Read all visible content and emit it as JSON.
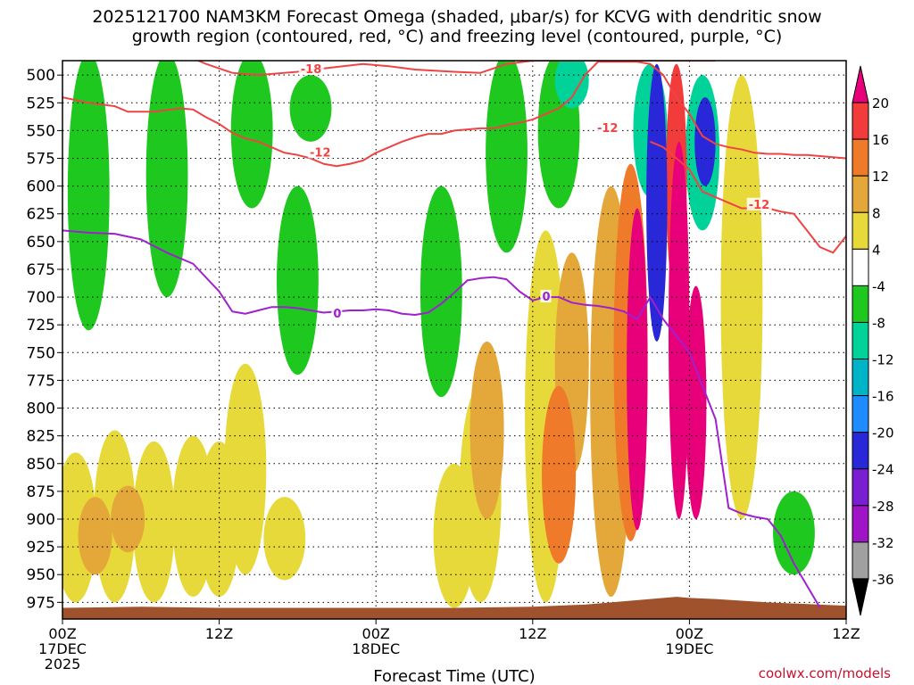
{
  "title_lines": [
    "2025121700 NAM3KM Forecast Omega (shaded, μbar/s) for KCVG with dendritic snow",
    "growth region (contoured, red, °C) and freezing level (contoured, purple, °C)"
  ],
  "credit": "coolwx.com/models",
  "chart_data": {
    "type": "heatmap",
    "title": "2025121700 NAM3KM Forecast Omega (shaded, μbar/s) for KCVG with dendritic snow growth region (contoured, red, °C) and freezing level (contoured, purple, °C)",
    "xlabel": "Forecast Time (UTC)",
    "ylabel": "",
    "x_unit": "forecast hour",
    "xlim": [
      0,
      60
    ],
    "ylim": [
      990,
      487
    ],
    "y_scale": "pressure (hPa), increasing downward",
    "grid": true,
    "x_ticks": [
      {
        "hour": 0,
        "lines": [
          "00Z",
          "17DEC",
          "2025"
        ]
      },
      {
        "hour": 12,
        "lines": [
          "12Z"
        ]
      },
      {
        "hour": 24,
        "lines": [
          "00Z",
          "18DEC"
        ]
      },
      {
        "hour": 36,
        "lines": [
          "12Z"
        ]
      },
      {
        "hour": 48,
        "lines": [
          "00Z",
          "19DEC"
        ]
      },
      {
        "hour": 60,
        "lines": [
          "12Z"
        ]
      }
    ],
    "y_ticks": [
      500,
      525,
      550,
      575,
      600,
      625,
      650,
      675,
      700,
      725,
      750,
      775,
      800,
      825,
      850,
      875,
      900,
      925,
      950,
      975
    ],
    "colorbar": {
      "unit": "μbar/s",
      "labels": [
        "20",
        "16",
        "12",
        "8",
        "4",
        "-4",
        "-8",
        "-12",
        "-16",
        "-20",
        "-24",
        "-28",
        "-32",
        "-36"
      ],
      "bins": [
        {
          "range": [
            20,
            24
          ],
          "color": "#e8007a"
        },
        {
          "range": [
            16,
            20
          ],
          "color": "#f23c3c"
        },
        {
          "range": [
            12,
            16
          ],
          "color": "#ee7a2a"
        },
        {
          "range": [
            8,
            12
          ],
          "color": "#e4a83a"
        },
        {
          "range": [
            4,
            8
          ],
          "color": "#e8d93a"
        },
        {
          "range": [
            -4,
            4
          ],
          "color": "#ffffff"
        },
        {
          "range": [
            -8,
            -4
          ],
          "color": "#1ec81e"
        },
        {
          "range": [
            -12,
            -8
          ],
          "color": "#00d29a"
        },
        {
          "range": [
            -16,
            -12
          ],
          "color": "#00b4c8"
        },
        {
          "range": [
            -20,
            -16
          ],
          "color": "#1e8cff"
        },
        {
          "range": [
            -24,
            -20
          ],
          "color": "#2828d8"
        },
        {
          "range": [
            -28,
            -24
          ],
          "color": "#7a1ed2"
        },
        {
          "range": [
            -32,
            -28
          ],
          "color": "#a014c8"
        },
        {
          "range": [
            -36,
            -32
          ],
          "color": "#a0a0a0"
        }
      ]
    },
    "fields": [
      {
        "hour": 1,
        "p": [
          840,
          975
        ],
        "value": 6
      },
      {
        "hour": 2.5,
        "p": [
          880,
          950
        ],
        "value": 10
      },
      {
        "hour": 4,
        "p": [
          820,
          975
        ],
        "value": 6
      },
      {
        "hour": 5,
        "p": [
          870,
          930
        ],
        "value": 10
      },
      {
        "hour": 7,
        "p": [
          830,
          975
        ],
        "value": 6
      },
      {
        "hour": 10,
        "p": [
          825,
          970
        ],
        "value": 6
      },
      {
        "hour": 12,
        "p": [
          830,
          970
        ],
        "value": 6
      },
      {
        "hour": 14,
        "p": [
          760,
          950
        ],
        "value": 6
      },
      {
        "hour": 17,
        "p": [
          880,
          955
        ],
        "value": 6
      },
      {
        "hour": 30,
        "p": [
          850,
          980
        ],
        "value": 6
      },
      {
        "hour": 32,
        "p": [
          780,
          975
        ],
        "value": 6
      },
      {
        "hour": 32.5,
        "p": [
          740,
          900
        ],
        "value": 10
      },
      {
        "hour": 37,
        "p": [
          640,
          975
        ],
        "value": 6
      },
      {
        "hour": 38,
        "p": [
          780,
          940
        ],
        "value": 12
      },
      {
        "hour": 39,
        "p": [
          660,
          860
        ],
        "value": 10
      },
      {
        "hour": 42,
        "p": [
          600,
          970
        ],
        "value": 8
      },
      {
        "hour": 43.5,
        "p": [
          580,
          920
        ],
        "value": 14
      },
      {
        "hour": 44,
        "p": [
          620,
          910
        ],
        "value": 22
      },
      {
        "hour": 45,
        "p": [
          490,
          610
        ],
        "value": -12
      },
      {
        "hour": 45.5,
        "p": [
          490,
          740
        ],
        "value": -22
      },
      {
        "hour": 47,
        "p": [
          490,
          700
        ],
        "value": 18
      },
      {
        "hour": 47.2,
        "p": [
          560,
          900
        ],
        "value": 22
      },
      {
        "hour": 48.5,
        "p": [
          690,
          900
        ],
        "value": 22
      },
      {
        "hour": 49,
        "p": [
          500,
          640
        ],
        "value": -12
      },
      {
        "hour": 49.2,
        "p": [
          520,
          600
        ],
        "value": -24
      },
      {
        "hour": 52,
        "p": [
          500,
          900
        ],
        "value": 6
      },
      {
        "hour": 56,
        "p": [
          875,
          950
        ],
        "value": -6
      },
      {
        "hour": 2,
        "p": [
          480,
          730
        ],
        "value": -6
      },
      {
        "hour": 8,
        "p": [
          480,
          700
        ],
        "value": -6
      },
      {
        "hour": 14.5,
        "p": [
          480,
          620
        ],
        "value": -6
      },
      {
        "hour": 18,
        "p": [
          600,
          770
        ],
        "value": -6
      },
      {
        "hour": 19,
        "p": [
          500,
          560
        ],
        "value": -6
      },
      {
        "hour": 29,
        "p": [
          600,
          790
        ],
        "value": -6
      },
      {
        "hour": 34,
        "p": [
          480,
          660
        ],
        "value": -6
      },
      {
        "hour": 38,
        "p": [
          480,
          620
        ],
        "value": -6
      },
      {
        "hour": 39,
        "p": [
          480,
          530
        ],
        "value": -10
      }
    ],
    "series": [
      {
        "name": "-18",
        "color": "#ee4444",
        "x": [
          9,
          11,
          13,
          15,
          17,
          18,
          20,
          23,
          25,
          27,
          30,
          32,
          34,
          36,
          38,
          40,
          42,
          46,
          48,
          50
        ],
        "y": [
          480,
          490,
          498,
          500,
          498,
          497,
          494,
          490,
          492,
          495,
          497,
          498,
          490,
          487,
          487,
          487,
          487,
          487,
          487,
          487
        ]
      },
      {
        "name": "-12",
        "color": "#ee4444",
        "x": [
          0,
          2,
          4,
          5,
          7,
          9,
          10,
          11,
          12,
          13,
          14,
          15,
          16,
          17,
          18,
          19,
          20,
          21,
          22,
          23,
          24,
          25,
          26,
          27,
          28,
          29,
          30,
          31,
          32,
          33,
          34,
          35,
          36,
          37,
          38,
          39,
          40,
          41,
          42,
          43,
          44,
          45,
          46,
          47,
          48,
          49,
          50,
          51,
          52,
          53,
          54,
          55,
          56,
          57,
          58,
          59,
          60
        ],
        "y": [
          520,
          525,
          528,
          533,
          533,
          530,
          531,
          538,
          544,
          552,
          557,
          560,
          565,
          570,
          572,
          575,
          580,
          582,
          580,
          577,
          570,
          565,
          560,
          556,
          553,
          553,
          550,
          549,
          548,
          548,
          545,
          543,
          540,
          535,
          530,
          520,
          500,
          488,
          488,
          488,
          488,
          490,
          500,
          520,
          535,
          555,
          562,
          565,
          567,
          570,
          571,
          571,
          572,
          572,
          573,
          574,
          575
        ]
      },
      {
        "name": "-12",
        "color": "#ee4444",
        "x": [
          45,
          46,
          47,
          48,
          49,
          50,
          51,
          52,
          53,
          54,
          55,
          56,
          57,
          58,
          59,
          60
        ],
        "y": [
          560,
          565,
          575,
          585,
          605,
          610,
          615,
          620,
          620,
          620,
          623,
          625,
          640,
          655,
          660,
          645
        ]
      },
      {
        "name": "0",
        "color": "#a020d0",
        "x": [
          0,
          2,
          4,
          6,
          8,
          10,
          12,
          13,
          14,
          15,
          16,
          17,
          18,
          19,
          20,
          21,
          22,
          23,
          24,
          25,
          26,
          27,
          28,
          29,
          30,
          31,
          32,
          33,
          34,
          35,
          36,
          37,
          38,
          39,
          40,
          41,
          42,
          43,
          44,
          45,
          46,
          47,
          48,
          49,
          50,
          51,
          52,
          53,
          54,
          55,
          56,
          57,
          58
        ],
        "y": [
          640,
          642,
          643,
          648,
          660,
          670,
          695,
          713,
          715,
          712,
          709,
          709,
          710,
          712,
          714,
          713,
          712,
          712,
          711,
          712,
          715,
          716,
          714,
          706,
          696,
          685,
          683,
          682,
          684,
          695,
          703,
          700,
          700,
          705,
          707,
          708,
          710,
          713,
          720,
          700,
          720,
          735,
          750,
          780,
          810,
          890,
          895,
          898,
          900,
          915,
          940,
          960,
          980
        ]
      }
    ],
    "contour_labels": [
      {
        "text": "-18",
        "x": 18.3,
        "y": 495
      },
      {
        "text": "-12",
        "x": 19.0,
        "y": 570
      },
      {
        "text": "-12",
        "x": 41.0,
        "y": 548
      },
      {
        "text": "-12",
        "x": 52.6,
        "y": 617
      },
      {
        "text": "0",
        "x": 20.8,
        "y": 715
      },
      {
        "text": "0",
        "x": 36.8,
        "y": 700
      }
    ],
    "terrain": {
      "color": "#a0522d",
      "x": [
        0,
        6,
        12,
        18,
        24,
        30,
        36,
        40,
        44,
        47,
        48,
        50,
        54,
        58,
        60
      ],
      "y": [
        980,
        979,
        980,
        980,
        980,
        980,
        979,
        977,
        973,
        970,
        971,
        972,
        975,
        977,
        978
      ]
    }
  }
}
